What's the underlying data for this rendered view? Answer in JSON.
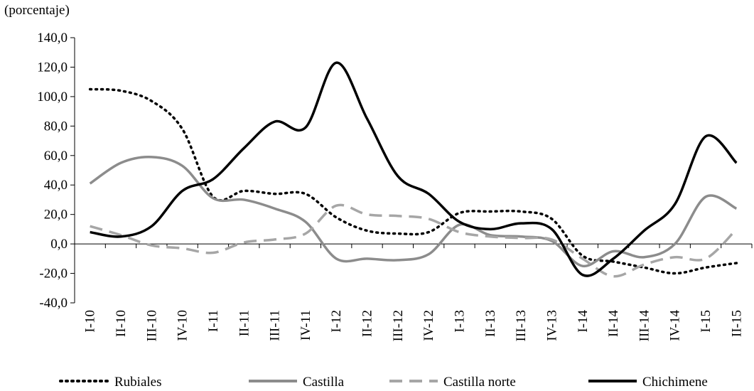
{
  "chart_data": {
    "type": "line",
    "y_label": "(porcentaje)",
    "categories": [
      "I-10",
      "II-10",
      "III-10",
      "IV-10",
      "I-11",
      "II-11",
      "III-11",
      "IV-11",
      "I-12",
      "II-12",
      "III-12",
      "IV-12",
      "I-13",
      "II-13",
      "III-13",
      "IV-13",
      "I-14",
      "II-14",
      "III-14",
      "IV-14",
      "I-15",
      "II-15"
    ],
    "series": [
      {
        "name": "Rubiales",
        "color": "#000000",
        "dash": "dotted",
        "values": [
          105,
          104,
          97,
          78,
          32,
          36,
          34,
          34,
          18,
          9,
          7,
          8,
          21,
          22,
          22,
          17,
          -8,
          -12,
          -16,
          -20,
          -16,
          -13
        ]
      },
      {
        "name": "Castilla",
        "color": "#8c8c8c",
        "dash": "solid",
        "values": [
          41,
          55,
          59,
          53,
          31,
          30,
          24,
          15,
          -10,
          -10,
          -11,
          -7,
          13,
          6,
          5,
          2,
          -15,
          -5,
          -9,
          0,
          32,
          24
        ]
      },
      {
        "name": "Castilla norte",
        "color": "#a6a6a6",
        "dash": "dashed",
        "values": [
          12,
          6,
          -1,
          -3,
          -6,
          1,
          3,
          7,
          26,
          20,
          19,
          17,
          8,
          5,
          4,
          3,
          -10,
          -22,
          -14,
          -9,
          -10,
          10
        ]
      },
      {
        "name": "Chichimene",
        "color": "#000000",
        "dash": "solid",
        "values": [
          8,
          5,
          12,
          36,
          44,
          65,
          83,
          79,
          123,
          85,
          46,
          34,
          15,
          10,
          14,
          10,
          -21,
          -10,
          9,
          27,
          73,
          55
        ]
      }
    ],
    "ylim": [
      -40,
      140
    ],
    "yticks": [
      {
        "value": -40,
        "label": "-40,0"
      },
      {
        "value": -20,
        "label": "-20,0"
      },
      {
        "value": 0,
        "label": "0,0"
      },
      {
        "value": 20,
        "label": "20,0"
      },
      {
        "value": 40,
        "label": "40,0"
      },
      {
        "value": 60,
        "label": "60,0"
      },
      {
        "value": 80,
        "label": "80,0"
      },
      {
        "value": 100,
        "label": "100,0"
      },
      {
        "value": 120,
        "label": "120,0"
      },
      {
        "value": 140,
        "label": "140,0"
      }
    ],
    "grid": false,
    "legend": "bottom"
  }
}
